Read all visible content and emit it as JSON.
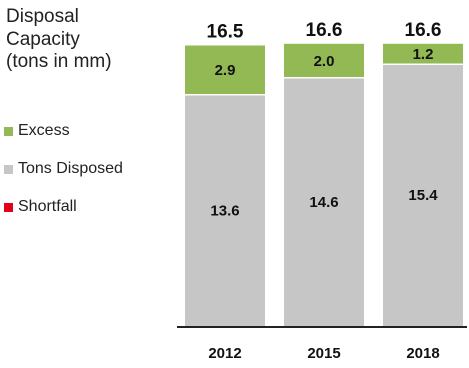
{
  "title_lines": [
    "Disposal",
    "Capacity",
    "(tons in mm)"
  ],
  "legend": [
    {
      "label": "Excess",
      "color": "#92b954"
    },
    {
      "label": "Tons Disposed",
      "color": "#c6c6c6"
    },
    {
      "label": "Shortfall",
      "color": "#e2001a"
    }
  ],
  "chart_data": {
    "type": "bar",
    "stacked": true,
    "title": "Disposal Capacity (tons in mm)",
    "categories": [
      "2012",
      "2015",
      "2018"
    ],
    "series": [
      {
        "name": "Tons Disposed",
        "values": [
          13.6,
          14.6,
          15.4
        ],
        "color": "#c6c6c6"
      },
      {
        "name": "Excess",
        "values": [
          2.9,
          2.0,
          1.2
        ],
        "color": "#92b954"
      },
      {
        "name": "Shortfall",
        "values": [
          0,
          0,
          0
        ],
        "color": "#e2001a"
      }
    ],
    "totals": [
      "16.5",
      "16.6",
      "16.6"
    ],
    "segment_labels": {
      "Tons Disposed": [
        "13.6",
        "14.6",
        "15.4"
      ],
      "Excess": [
        "2.9",
        "2.0",
        "1.2"
      ]
    },
    "ylim": [
      0,
      16.6
    ],
    "grid": false,
    "legend_position": "left"
  }
}
